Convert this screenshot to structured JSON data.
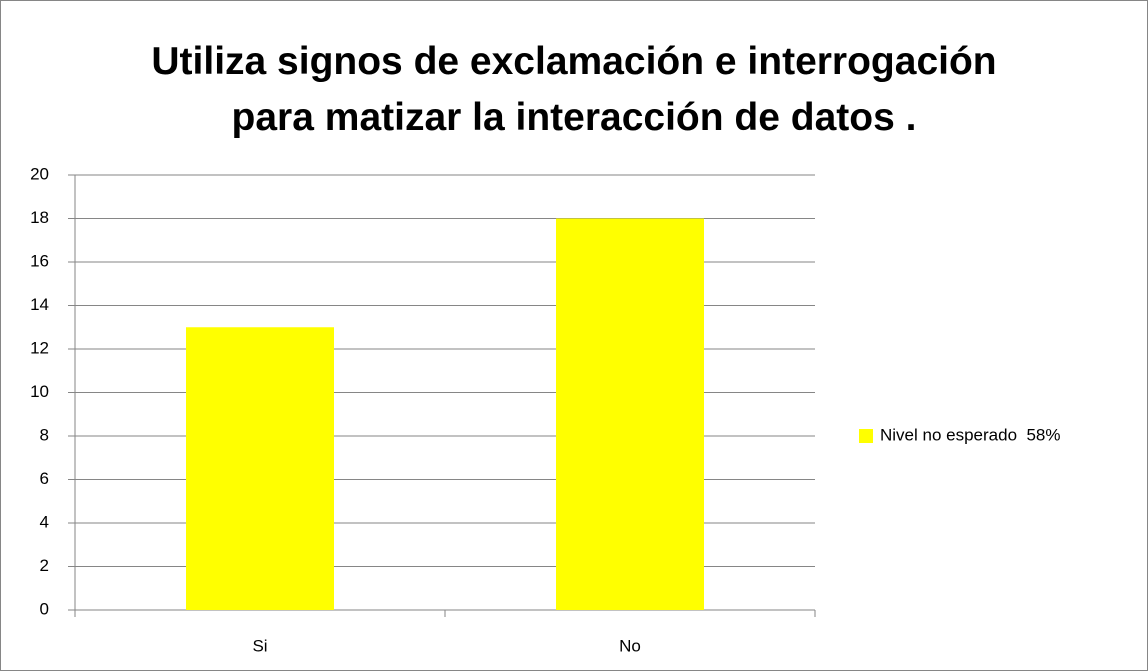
{
  "chart_data": {
    "type": "bar",
    "title": "Utiliza signos de exclamación e interrogación para matizar la interacción de datos .",
    "categories": [
      "Si",
      "No"
    ],
    "series": [
      {
        "name": "Nivel no esperado  58%",
        "color": "#ffff00",
        "values": [
          13,
          18
        ]
      }
    ],
    "ylim": [
      0,
      20
    ],
    "yticks": [
      0,
      2,
      4,
      6,
      8,
      10,
      12,
      14,
      16,
      18,
      20
    ],
    "grid": true,
    "legend": "right"
  }
}
